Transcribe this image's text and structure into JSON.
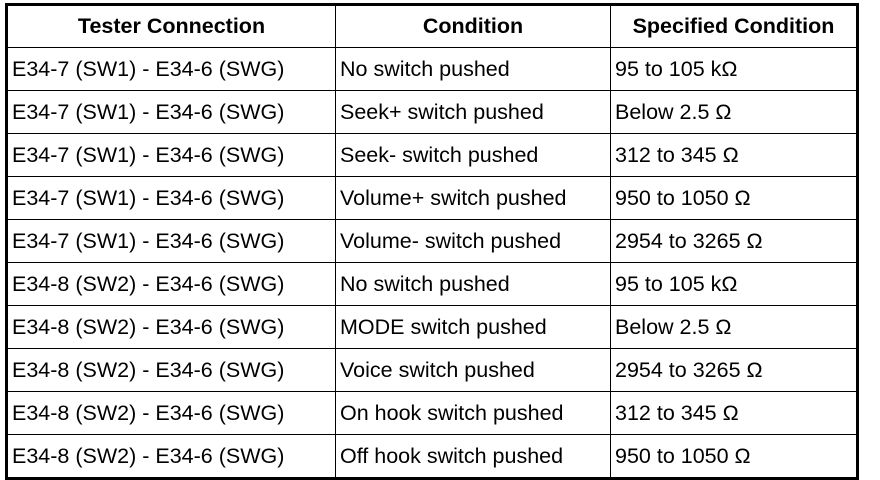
{
  "headers": [
    "Tester Connection",
    "Condition",
    "Specified Condition"
  ],
  "rows": [
    [
      "E34-7 (SW1) - E34-6 (SWG)",
      "No switch pushed",
      "95 to 105 kΩ"
    ],
    [
      "E34-7 (SW1) - E34-6 (SWG)",
      "Seek+ switch pushed",
      "Below 2.5 Ω"
    ],
    [
      "E34-7 (SW1) - E34-6 (SWG)",
      "Seek- switch pushed",
      "312 to 345 Ω"
    ],
    [
      "E34-7 (SW1) - E34-6 (SWG)",
      "Volume+ switch pushed",
      "950 to 1050 Ω"
    ],
    [
      "E34-7 (SW1) - E34-6 (SWG)",
      "Volume- switch pushed",
      "2954 to 3265 Ω"
    ],
    [
      "E34-8 (SW2) - E34-6 (SWG)",
      "No switch pushed",
      "95 to 105 kΩ"
    ],
    [
      "E34-8 (SW2) - E34-6 (SWG)",
      "MODE switch pushed",
      "Below 2.5 Ω"
    ],
    [
      "E34-8 (SW2) - E34-6 (SWG)",
      "Voice switch pushed",
      "2954 to 3265 Ω"
    ],
    [
      "E34-8 (SW2) - E34-6 (SWG)",
      "On hook switch pushed",
      "312 to 345 Ω"
    ],
    [
      "E34-8 (SW2) - E34-6 (SWG)",
      "Off hook switch pushed",
      "950 to 1050 Ω"
    ]
  ]
}
